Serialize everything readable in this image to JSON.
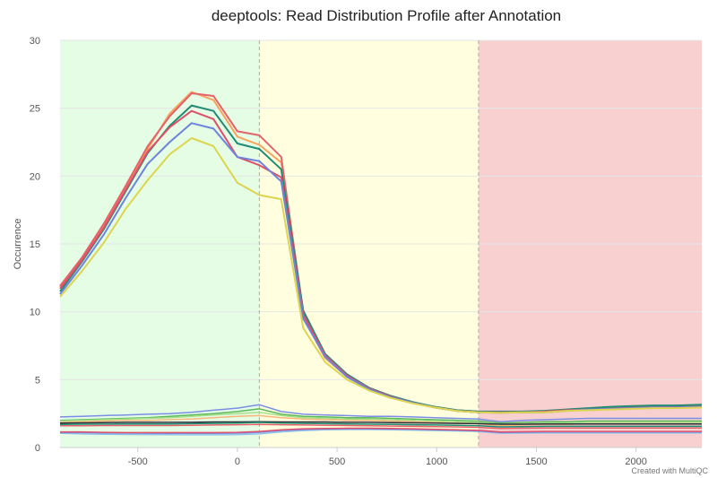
{
  "title": "deeptools: Read Distribution Profile after Annotation",
  "credit": "Created with MultiQC",
  "chart_data": {
    "type": "line",
    "title": "deeptools: Read Distribution Profile after Annotation",
    "xlabel": "",
    "ylabel": "Occurrence",
    "xlim": [
      -890,
      2330
    ],
    "ylim": [
      0,
      30
    ],
    "x_ticks": [
      -500,
      0,
      500,
      1000,
      1500,
      2000
    ],
    "y_ticks": [
      0,
      5,
      10,
      15,
      20,
      25,
      30
    ],
    "grid": true,
    "regions": [
      {
        "from": -890,
        "to": 110,
        "color": "#e5fce5"
      },
      {
        "from": 110,
        "to": 1210,
        "color": "#ffffe0"
      },
      {
        "from": 1210,
        "to": 2330,
        "color": "#f8d0d0"
      }
    ],
    "vlines": [
      110,
      1210
    ],
    "x": [
      -890,
      -780,
      -670,
      -560,
      -450,
      -340,
      -230,
      -120,
      0,
      110,
      220,
      330,
      440,
      550,
      660,
      770,
      880,
      990,
      1100,
      1210,
      1320,
      1430,
      1540,
      1650,
      1760,
      1870,
      1980,
      2090,
      2200,
      2330
    ],
    "series": [
      {
        "color": "#f7a35c",
        "values": [
          11.8,
          13.9,
          16.4,
          19.2,
          22.0,
          24.6,
          26.2,
          25.6,
          22.9,
          22.3,
          21.0,
          9.6,
          6.6,
          5.2,
          4.3,
          3.7,
          3.3,
          2.95,
          2.7,
          2.6,
          2.6,
          2.6,
          2.6,
          2.7,
          2.8,
          2.85,
          2.9,
          2.95,
          2.95,
          3.0
        ]
      },
      {
        "color": "#e4636b",
        "values": [
          11.9,
          14.0,
          16.5,
          19.3,
          22.2,
          24.4,
          26.1,
          25.9,
          23.3,
          23.0,
          21.4,
          10.0,
          6.9,
          5.3,
          4.4,
          3.8,
          3.3,
          3.0,
          2.75,
          2.65,
          2.6,
          2.65,
          2.65,
          2.75,
          2.85,
          2.9,
          2.95,
          3.0,
          3.0,
          3.05
        ]
      },
      {
        "color": "#1f8c73",
        "values": [
          11.5,
          13.7,
          16.1,
          18.9,
          21.7,
          23.7,
          25.2,
          24.8,
          22.4,
          22.0,
          20.5,
          10.1,
          6.9,
          5.4,
          4.4,
          3.8,
          3.35,
          3.0,
          2.75,
          2.65,
          2.65,
          2.65,
          2.7,
          2.8,
          2.9,
          3.0,
          3.05,
          3.1,
          3.1,
          3.15
        ]
      },
      {
        "color": "#e0506a",
        "values": [
          11.7,
          13.8,
          16.2,
          19.0,
          21.8,
          23.6,
          24.8,
          24.2,
          21.4,
          20.8,
          19.9,
          9.8,
          6.8,
          5.3,
          4.35,
          3.75,
          3.3,
          2.95,
          2.7,
          2.6,
          2.6,
          2.6,
          2.65,
          2.75,
          2.8,
          2.85,
          2.9,
          2.95,
          2.95,
          3.0
        ]
      },
      {
        "color": "#6c84db",
        "values": [
          11.3,
          13.4,
          15.7,
          18.4,
          20.9,
          22.5,
          23.9,
          23.5,
          21.4,
          21.1,
          19.6,
          9.5,
          6.7,
          5.2,
          4.3,
          3.7,
          3.3,
          2.95,
          2.7,
          2.6,
          2.55,
          2.6,
          2.6,
          2.7,
          2.8,
          2.85,
          2.9,
          2.95,
          2.95,
          3.0
        ]
      },
      {
        "color": "#dcd54d",
        "values": [
          11.1,
          13.0,
          15.1,
          17.6,
          19.7,
          21.6,
          22.8,
          22.2,
          19.5,
          18.6,
          18.3,
          8.8,
          6.3,
          5.0,
          4.2,
          3.65,
          3.25,
          2.95,
          2.7,
          2.6,
          2.55,
          2.6,
          2.6,
          2.7,
          2.75,
          2.8,
          2.85,
          2.9,
          2.9,
          2.95
        ]
      },
      {
        "color": "#7a8ee6",
        "values": [
          2.25,
          2.3,
          2.35,
          2.4,
          2.45,
          2.5,
          2.6,
          2.75,
          2.9,
          3.15,
          2.65,
          2.45,
          2.4,
          2.35,
          2.3,
          2.3,
          2.25,
          2.2,
          2.15,
          2.1,
          1.9,
          2.0,
          2.05,
          2.1,
          2.15,
          2.15,
          2.15,
          2.15,
          2.15,
          2.15
        ]
      },
      {
        "color": "#5cb85c",
        "values": [
          2.0,
          2.05,
          2.1,
          2.15,
          2.2,
          2.3,
          2.4,
          2.5,
          2.65,
          2.85,
          2.45,
          2.3,
          2.25,
          2.2,
          2.2,
          2.15,
          2.1,
          2.05,
          2.0,
          1.95,
          1.8,
          1.85,
          1.9,
          1.9,
          1.95,
          1.95,
          1.95,
          1.95,
          1.95,
          1.95
        ]
      },
      {
        "color": "#a6e08a",
        "values": [
          1.95,
          2.0,
          2.05,
          2.1,
          2.15,
          2.2,
          2.3,
          2.4,
          2.5,
          2.6,
          2.35,
          2.2,
          2.15,
          2.1,
          2.1,
          2.05,
          2.0,
          1.95,
          1.9,
          1.85,
          1.7,
          1.75,
          1.8,
          1.8,
          1.85,
          1.85,
          1.85,
          1.85,
          1.85,
          1.85
        ]
      },
      {
        "color": "#f7b77b",
        "values": [
          1.85,
          1.9,
          1.95,
          2.0,
          2.0,
          2.05,
          2.1,
          2.2,
          2.3,
          2.35,
          2.2,
          2.1,
          2.05,
          2.0,
          2.0,
          1.95,
          1.9,
          1.85,
          1.8,
          1.75,
          1.6,
          1.65,
          1.7,
          1.7,
          1.75,
          1.75,
          1.75,
          1.75,
          1.75,
          1.75
        ]
      },
      {
        "color": "#2e2e3a",
        "values": [
          1.8,
          1.82,
          1.84,
          1.86,
          1.86,
          1.86,
          1.86,
          1.88,
          1.88,
          1.9,
          1.88,
          1.88,
          1.88,
          1.86,
          1.86,
          1.84,
          1.82,
          1.8,
          1.78,
          1.76,
          1.72,
          1.72,
          1.74,
          1.74,
          1.74,
          1.74,
          1.74,
          1.74,
          1.74,
          1.74
        ]
      },
      {
        "color": "#1f8c73",
        "values": [
          1.7,
          1.72,
          1.72,
          1.74,
          1.74,
          1.74,
          1.76,
          1.78,
          1.8,
          1.85,
          1.8,
          1.78,
          1.76,
          1.74,
          1.72,
          1.7,
          1.68,
          1.66,
          1.64,
          1.6,
          1.52,
          1.54,
          1.56,
          1.56,
          1.56,
          1.56,
          1.56,
          1.56,
          1.56,
          1.56
        ]
      },
      {
        "color": "#e4636b",
        "values": [
          1.6,
          1.6,
          1.62,
          1.62,
          1.62,
          1.62,
          1.64,
          1.66,
          1.68,
          1.7,
          1.68,
          1.66,
          1.64,
          1.62,
          1.6,
          1.58,
          1.56,
          1.54,
          1.52,
          1.48,
          1.4,
          1.42,
          1.44,
          1.44,
          1.44,
          1.44,
          1.44,
          1.44,
          1.44,
          1.44
        ]
      },
      {
        "color": "#91c4e8",
        "values": [
          1.05,
          1.0,
          0.98,
          0.96,
          0.95,
          0.94,
          0.93,
          0.93,
          0.95,
          1.0,
          1.15,
          1.25,
          1.3,
          1.32,
          1.32,
          1.3,
          1.28,
          1.25,
          1.22,
          1.18,
          1.05,
          1.06,
          1.08,
          1.08,
          1.08,
          1.08,
          1.08,
          1.08,
          1.08,
          1.08
        ]
      },
      {
        "color": "#7a8ee6",
        "values": [
          1.1,
          1.1,
          1.08,
          1.06,
          1.05,
          1.04,
          1.04,
          1.04,
          1.06,
          1.12,
          1.25,
          1.32,
          1.36,
          1.38,
          1.38,
          1.36,
          1.34,
          1.3,
          1.26,
          1.22,
          1.1,
          1.12,
          1.14,
          1.14,
          1.14,
          1.14,
          1.14,
          1.14,
          1.14,
          1.14
        ]
      },
      {
        "color": "#e0506a",
        "values": [
          1.15,
          1.15,
          1.12,
          1.1,
          1.1,
          1.1,
          1.1,
          1.1,
          1.12,
          1.18,
          1.3,
          1.38,
          1.4,
          1.42,
          1.42,
          1.4,
          1.38,
          1.34,
          1.3,
          1.26,
          1.15,
          1.16,
          1.18,
          1.18,
          1.18,
          1.18,
          1.18,
          1.18,
          1.18,
          1.18
        ]
      }
    ]
  }
}
